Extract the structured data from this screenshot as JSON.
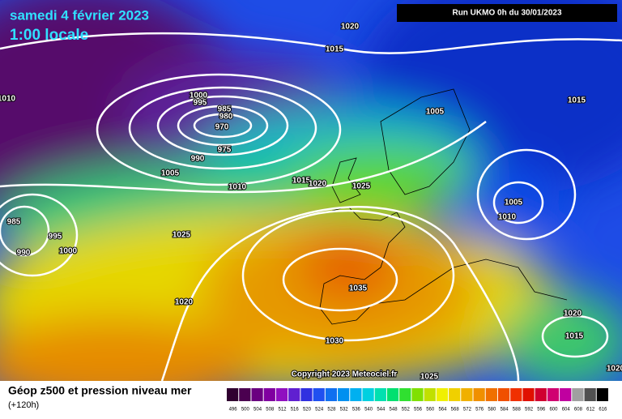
{
  "header": {
    "date": "samedi 4 février 2023",
    "time": "1:00 locale",
    "run": "Run UKMO 0h du 30/01/2023",
    "copyright": "Copyright 2023 Meteociel.fr"
  },
  "isobar_labels": [
    1020,
    1015,
    1005,
    1015,
    1010,
    1000,
    995,
    985,
    980,
    970,
    975,
    990,
    1005,
    1010,
    1015,
    1020,
    1025,
    1005,
    1010,
    985,
    995,
    990,
    1000,
    1025,
    1020,
    1035,
    1030,
    1020,
    1015,
    1025,
    1020
  ],
  "legend": {
    "title": "Géop z500 et pression niveau mer",
    "subtitle": "(+120h)",
    "scale": [
      496,
      500,
      504,
      508,
      512,
      516,
      520,
      524,
      528,
      532,
      536,
      540,
      544,
      548,
      552,
      556,
      560,
      564,
      568,
      572,
      576,
      580,
      584,
      588,
      592,
      596,
      600,
      604,
      608,
      612,
      616
    ],
    "colors": [
      "#300030",
      "#4b0050",
      "#6a0080",
      "#8000a0",
      "#9010c0",
      "#6020d0",
      "#3030e0",
      "#2050f0",
      "#1070f0",
      "#0090f0",
      "#00b0f0",
      "#00d0e0",
      "#00e0b0",
      "#00e070",
      "#30e030",
      "#80e000",
      "#c0e000",
      "#f0f000",
      "#f0d000",
      "#f0b000",
      "#f09000",
      "#f07000",
      "#f05000",
      "#f03000",
      "#e01000",
      "#d00030",
      "#d00070",
      "#c000a0",
      "#a0a0a0",
      "#505050",
      "#000000"
    ]
  }
}
